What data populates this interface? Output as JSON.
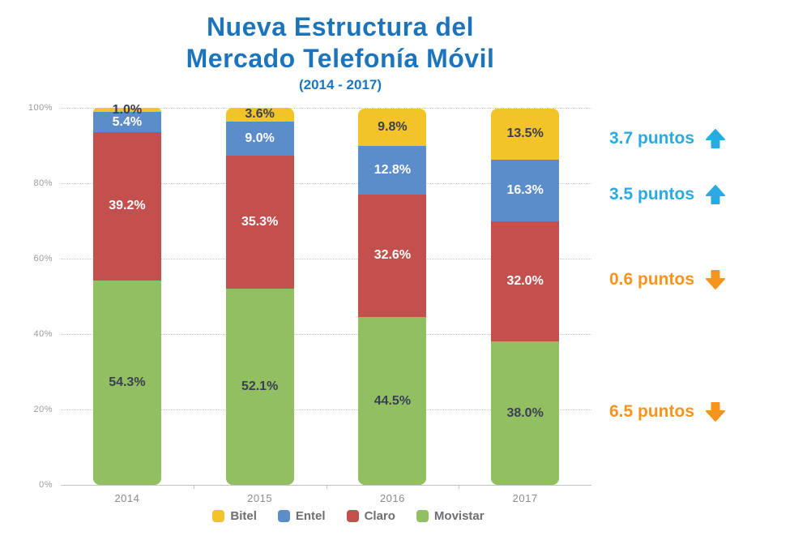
{
  "chart": {
    "title_line1": "Nueva Estructura del",
    "title_line2": "Mercado Telefonía Móvil",
    "subtitle": "(2014 - 2017)"
  },
  "chart_data": {
    "type": "bar",
    "stacked": true,
    "title": "Nueva Estructura del Mercado Telefonía Móvil (2014 - 2017)",
    "categories": [
      "2014",
      "2015",
      "2016",
      "2017"
    ],
    "series": [
      {
        "name": "Movistar",
        "color": "#92bf62",
        "label_color": "#3a3f52",
        "values": [
          54.3,
          52.1,
          44.5,
          38.0
        ]
      },
      {
        "name": "Claro",
        "color": "#c4504e",
        "label_color": "#ffffff",
        "values": [
          39.2,
          35.3,
          32.6,
          32.0
        ]
      },
      {
        "name": "Entel",
        "color": "#5b8dca",
        "label_color": "#ffffff",
        "values": [
          5.4,
          9.0,
          12.8,
          16.3
        ]
      },
      {
        "name": "Bitel",
        "color": "#f3c32a",
        "label_color": "#3a3f52",
        "values": [
          1.0,
          3.6,
          9.8,
          13.5
        ]
      }
    ],
    "ylim": [
      0,
      100
    ],
    "yticks": [
      "0%",
      "20%",
      "40%",
      "60%",
      "80%",
      "100%"
    ],
    "grid": "dotted horizontal",
    "legend_position": "bottom",
    "legend": [
      "Bitel",
      "Entel",
      "Claro",
      "Movistar"
    ],
    "annotations": [
      {
        "text": "3.7 puntos",
        "direction": "up",
        "color": "#29abe2",
        "refers_to": "Bitel"
      },
      {
        "text": "3.5 puntos",
        "direction": "up",
        "color": "#29abe2",
        "refers_to": "Entel"
      },
      {
        "text": "0.6 puntos",
        "direction": "down",
        "color": "#f7941d",
        "refers_to": "Claro"
      },
      {
        "text": "6.5 puntos",
        "direction": "down",
        "color": "#f7941d",
        "refers_to": "Movistar"
      }
    ]
  }
}
